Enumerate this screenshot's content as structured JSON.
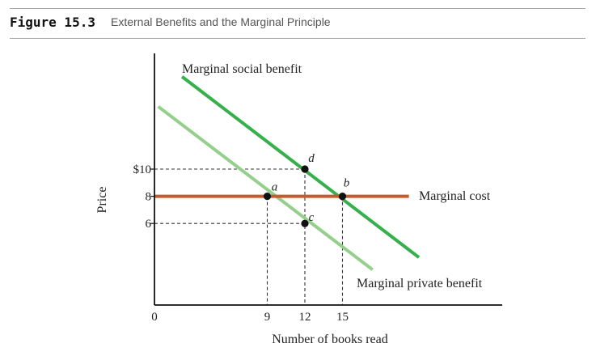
{
  "figure": {
    "label": "Figure 15.3",
    "title": "External Benefits and the Marginal Principle"
  },
  "chart_data": {
    "type": "line",
    "title": "External Benefits and the Marginal Principle",
    "xlabel": "Number of books read",
    "ylabel": "Price",
    "x_ticks": [
      {
        "value": 0,
        "label": "0"
      },
      {
        "value": 9,
        "label": "9"
      },
      {
        "value": 12,
        "label": "12"
      },
      {
        "value": 15,
        "label": "15"
      }
    ],
    "y_ticks": [
      {
        "value": 6,
        "label": "6"
      },
      {
        "value": 8,
        "label": "8"
      },
      {
        "value": 10,
        "label": "$10"
      }
    ],
    "xlim": [
      0,
      27
    ],
    "ylim": [
      0,
      18.5
    ],
    "series": [
      {
        "name": "Marginal social benefit",
        "color": "#35b04a",
        "x": [
          2.2,
          21.1
        ],
        "y": [
          16.8,
          3.5
        ]
      },
      {
        "name": "Marginal private benefit",
        "color": "#95cf8c",
        "x": [
          0.3,
          17.4
        ],
        "y": [
          14.6,
          2.6
        ]
      },
      {
        "name": "Marginal cost",
        "color": "#c55a2e",
        "x": [
          0,
          20.3
        ],
        "y": [
          8,
          8
        ]
      }
    ],
    "points": [
      {
        "label": "a",
        "x": 9,
        "y": 8
      },
      {
        "label": "b",
        "x": 15,
        "y": 8
      },
      {
        "label": "c",
        "x": 12,
        "y": 6
      },
      {
        "label": "d",
        "x": 12,
        "y": 10
      }
    ],
    "guides": [
      {
        "from": [
          0,
          10
        ],
        "to": [
          12,
          10
        ]
      },
      {
        "from": [
          0,
          6
        ],
        "to": [
          12,
          6
        ]
      },
      {
        "from": [
          9,
          8
        ],
        "to": [
          9,
          0
        ]
      },
      {
        "from": [
          12,
          10
        ],
        "to": [
          12,
          0
        ]
      },
      {
        "from": [
          15,
          8
        ],
        "to": [
          15,
          0
        ]
      }
    ]
  }
}
